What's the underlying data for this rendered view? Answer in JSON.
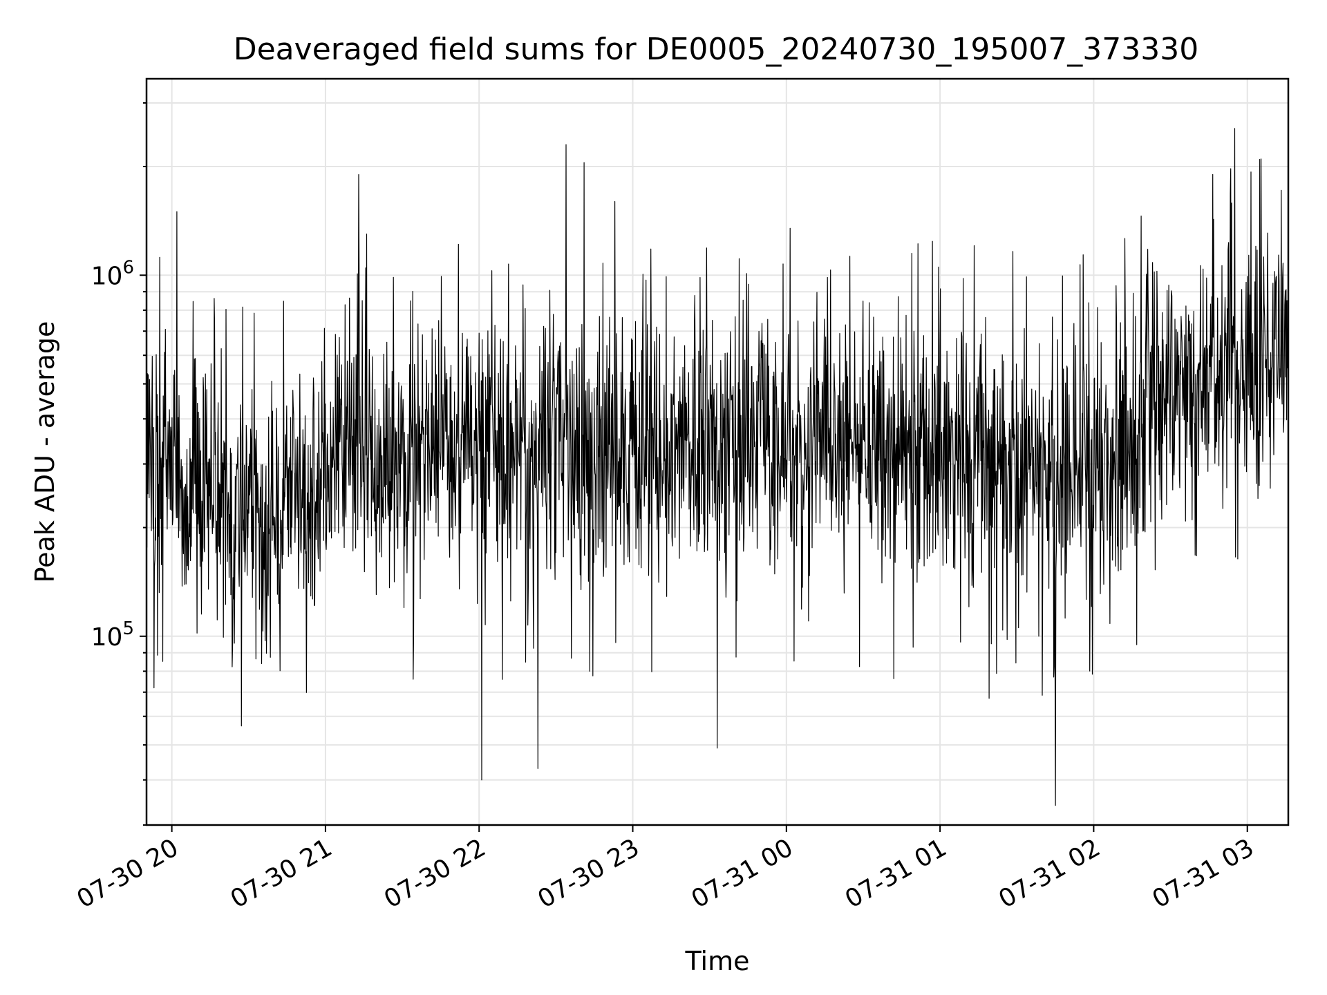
{
  "chart_data": {
    "type": "line",
    "title": "Deaveraged field sums for DE0005_20240730_195007_373330",
    "xlabel": "Time",
    "ylabel": "Peak ADU - average",
    "yscale": "log",
    "ylim": [
      30000,
      3500000
    ],
    "xlim": [
      "2024-07-30 19:50:07",
      "2024-07-31 03:16:00"
    ],
    "grid": true,
    "x_ticks": [
      {
        "time": "2024-07-30 20:00",
        "label": "07-30 20"
      },
      {
        "time": "2024-07-30 21:00",
        "label": "07-30 21"
      },
      {
        "time": "2024-07-30 22:00",
        "label": "07-30 22"
      },
      {
        "time": "2024-07-30 23:00",
        "label": "07-30 23"
      },
      {
        "time": "2024-07-31 00:00",
        "label": "07-31 00"
      },
      {
        "time": "2024-07-31 01:00",
        "label": "07-31 01"
      },
      {
        "time": "2024-07-31 02:00",
        "label": "07-31 02"
      },
      {
        "time": "2024-07-31 03:00",
        "label": "07-31 03"
      }
    ],
    "y_ticks": [
      {
        "value": 100000,
        "label_base": "10",
        "label_exp": "5"
      },
      {
        "value": 1000000,
        "label_base": "10",
        "label_exp": "6"
      }
    ],
    "series": [
      {
        "color": "#000000",
        "x_start": "2024-07-30 19:50:07",
        "x_end": "2024-07-31 03:16:00",
        "typical_level": [
          [
            0.0,
            330000
          ],
          [
            0.25,
            250000
          ],
          [
            0.5,
            230000
          ],
          [
            0.75,
            200000
          ],
          [
            1.0,
            230000
          ],
          [
            1.3,
            320000
          ],
          [
            1.6,
            290000
          ],
          [
            2.0,
            330000
          ],
          [
            2.5,
            340000
          ],
          [
            3.0,
            320000
          ],
          [
            3.5,
            330000
          ],
          [
            4.0,
            350000
          ],
          [
            4.5,
            330000
          ],
          [
            5.0,
            320000
          ],
          [
            5.5,
            300000
          ],
          [
            6.0,
            280000
          ],
          [
            6.3,
            300000
          ],
          [
            6.6,
            450000
          ],
          [
            7.0,
            550000
          ],
          [
            7.43,
            560000
          ]
        ],
        "notable_peaks": [
          {
            "time": "2024-07-30 20:02",
            "value": 1500000
          },
          {
            "time": "2024-07-30 21:13",
            "value": 1900000
          },
          {
            "time": "2024-07-30 21:16",
            "value": 1300000
          },
          {
            "time": "2024-07-30 22:34",
            "value": 2300000
          },
          {
            "time": "2024-07-30 22:41",
            "value": 2050000
          },
          {
            "time": "2024-07-30 22:53",
            "value": 1600000
          },
          {
            "time": "2024-07-31 00:49",
            "value": 1150000
          },
          {
            "time": "2024-07-31 02:55",
            "value": 2550000
          }
        ],
        "notable_dips": [
          {
            "time": "2024-07-30 22:01",
            "value": 40000
          },
          {
            "time": "2024-07-30 22:23",
            "value": 43000
          },
          {
            "time": "2024-07-30 23:33",
            "value": 49000
          },
          {
            "time": "2024-07-31 01:45",
            "value": 34000
          }
        ]
      }
    ]
  }
}
